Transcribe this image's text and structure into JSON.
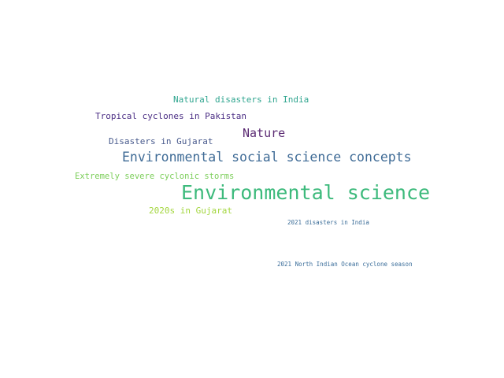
{
  "word_cloud": {
    "words": [
      {
        "text": "Environmental science",
        "color": "#3dba7c"
      },
      {
        "text": "Environmental social science concepts",
        "color": "#3f6b96"
      },
      {
        "text": "Nature",
        "color": "#5b2b73"
      },
      {
        "text": "Natural disasters in India",
        "color": "#2fa58f"
      },
      {
        "text": "Tropical cyclones in Pakistan",
        "color": "#4a2d84"
      },
      {
        "text": "Disasters in Gujarat",
        "color": "#47598c"
      },
      {
        "text": "Extremely severe cyclonic storms",
        "color": "#7cce5a"
      },
      {
        "text": "2020s in Gujarat",
        "color": "#a3d63e"
      },
      {
        "text": "2021 disasters in India",
        "color": "#3b6d98"
      },
      {
        "text": "2021 North Indian Ocean cyclone season",
        "color": "#3a6d9a"
      }
    ]
  }
}
